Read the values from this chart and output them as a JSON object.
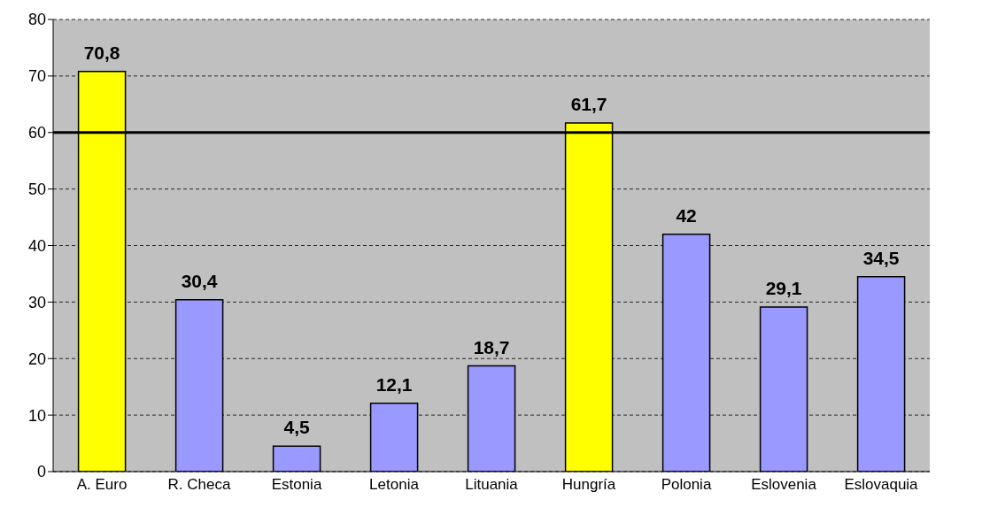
{
  "chart_data": {
    "type": "bar",
    "categories": [
      "A. Euro",
      "R. Checa",
      "Estonia",
      "Letonia",
      "Lituania",
      "Hungría",
      "Polonia",
      "Eslovenia",
      "Eslovaquia"
    ],
    "values": [
      70.8,
      30.4,
      4.5,
      12.1,
      18.7,
      61.7,
      42,
      29.1,
      34.5
    ],
    "value_labels": [
      "70,8",
      "30,4",
      "4,5",
      "12,1",
      "18,7",
      "61,7",
      "42",
      "29,1",
      "34,5"
    ],
    "colors": [
      "#ffff00",
      "#9999ff",
      "#9999ff",
      "#9999ff",
      "#9999ff",
      "#ffff00",
      "#9999ff",
      "#9999ff",
      "#9999ff"
    ],
    "ylim": [
      0,
      80
    ],
    "yticks": [
      0,
      10,
      20,
      30,
      40,
      50,
      60,
      70,
      80
    ],
    "grid": "y",
    "ref_lines": [
      {
        "axis": "y",
        "value": 60,
        "color": "#000000",
        "line_style": "solid"
      }
    ]
  }
}
